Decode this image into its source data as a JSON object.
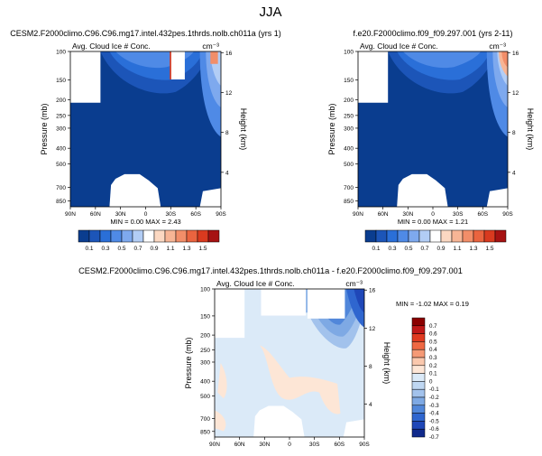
{
  "suptitle": "JJA",
  "colors": {
    "ref_scale": [
      "#0a3d8f",
      "#1c55b8",
      "#2a6fd8",
      "#4f8ae6",
      "#7ea9ee",
      "#b2cdf5",
      "#ffffff",
      "#fbd8c2",
      "#f7b595",
      "#f28e69",
      "#ea643f",
      "#d93a1f",
      "#a61212"
    ],
    "diff_scale": [
      "#8b0000",
      "#c01818",
      "#e03a20",
      "#ef6843",
      "#f59a76",
      "#fac8ad",
      "#fde6d6",
      "#dbeaf8",
      "#bfd7f2",
      "#a2c2ec",
      "#7ea9e4",
      "#5187da",
      "#2f66cf",
      "#1f47b8",
      "#102a8c"
    ],
    "missing": "#ffffff"
  },
  "panels": [
    {
      "id": "left",
      "title": "CESM2.F2000climo.C96.C96.mg17.intel.432pes.1thrds.nolb.ch011a (yrs 1)",
      "left_label": "Avg. Cloud Ice # Conc.",
      "right_label": "cm^-3",
      "right_label_display": "cm⁻³",
      "stats": "MIN =  0.00  MAX =   2.43"
    },
    {
      "id": "right",
      "title": "f.e20.F2000climo.f09_f09.297.001 (yrs 2-11)",
      "left_label": "Avg. Cloud Ice # Conc.",
      "right_label_display": "cm⁻³",
      "stats": "MIN =  0.00  MAX =   1.21"
    },
    {
      "id": "diff",
      "title": "CESM2.F2000climo.C96.C96.mg17.intel.432pes.1thrds.nolb.ch011a - f.e20.F2000climo.f09_f09.297.001",
      "left_label": "Avg. Cloud Ice # Conc.",
      "right_label_display": "cm⁻³",
      "stats": "MIN = -1.02  MAX =   0.19"
    }
  ],
  "chart_data": [
    {
      "type": "contour",
      "panel": "left",
      "x_ticks": [
        "90N",
        "60N",
        "30N",
        "0",
        "30S",
        "60S",
        "90S"
      ],
      "y_ticks_pressure": [
        "100",
        "150",
        "200",
        "250",
        "300",
        "400",
        "500",
        "700",
        "850"
      ],
      "y_ticks_height": [
        "16",
        "12",
        "8",
        "4"
      ],
      "xlabel": "",
      "ylabel": "Pressure (mb)",
      "ylabel_right": "Height (km)",
      "min": 0.0,
      "max": 2.43
    },
    {
      "type": "contour",
      "panel": "right",
      "x_ticks": [
        "90N",
        "60N",
        "30N",
        "0",
        "30S",
        "60S",
        "90S"
      ],
      "y_ticks_pressure": [
        "100",
        "150",
        "200",
        "250",
        "300",
        "400",
        "500",
        "700",
        "850"
      ],
      "y_ticks_height": [
        "16",
        "12",
        "8",
        "4"
      ],
      "ylabel": "Pressure (mb)",
      "ylabel_right": "Height (km)",
      "min": 0.0,
      "max": 1.21
    },
    {
      "type": "contour",
      "panel": "diff",
      "x_ticks": [
        "90N",
        "60N",
        "30N",
        "0",
        "30S",
        "60S",
        "90S"
      ],
      "y_ticks_pressure": [
        "100",
        "150",
        "200",
        "250",
        "300",
        "400",
        "500",
        "700",
        "850"
      ],
      "y_ticks_height": [
        "16",
        "12",
        "8",
        "4"
      ],
      "ylabel": "Pressure (mb)",
      "ylabel_right": "Height (km)",
      "min": -1.02,
      "max": 0.19
    },
    {
      "type": "colorbar",
      "id": "shared-horizontal",
      "orientation": "horizontal",
      "labels": [
        "0.1",
        "0.3",
        "0.5",
        "0.7",
        "0.9",
        "1.1",
        "1.3",
        "1.5"
      ]
    },
    {
      "type": "colorbar",
      "id": "diff-vertical",
      "orientation": "vertical",
      "labels": [
        "0.7",
        "0.6",
        "0.5",
        "0.4",
        "0.3",
        "0.2",
        "0.1",
        "0",
        "-0.1",
        "-0.2",
        "-0.3",
        "-0.4",
        "-0.5",
        "-0.6",
        "-0.7"
      ]
    }
  ]
}
